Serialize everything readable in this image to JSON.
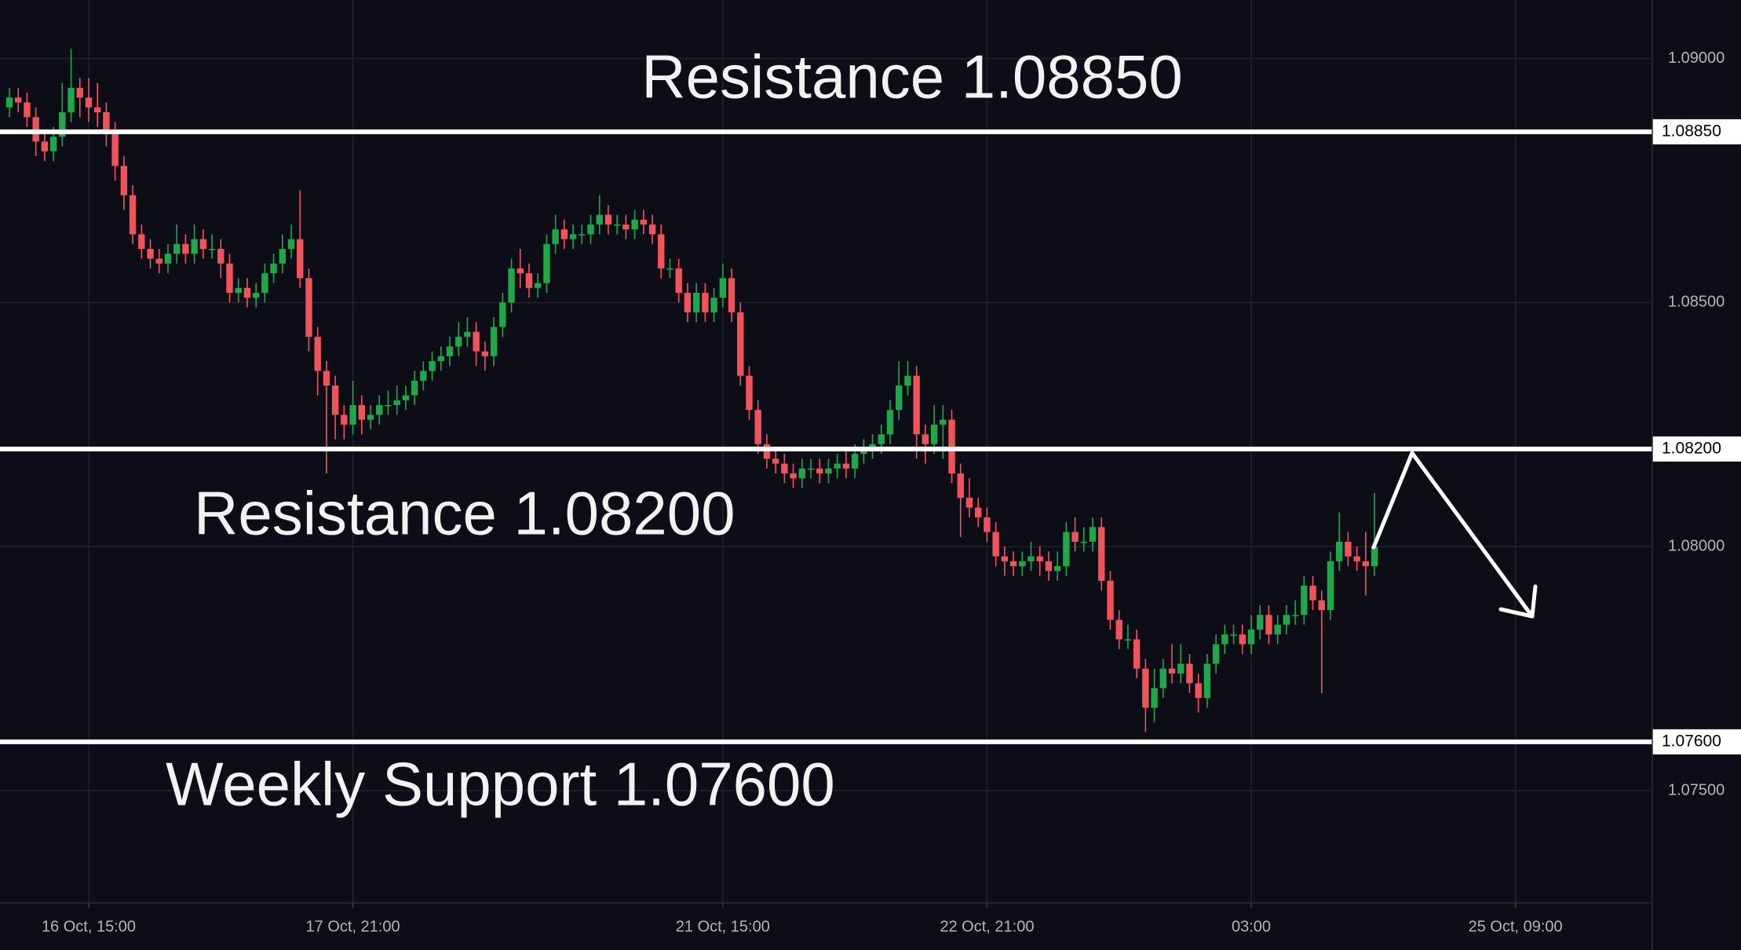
{
  "chart_data": {
    "type": "candlestick",
    "up_color": "#1ea84a",
    "down_color": "#f0545a",
    "background": "#0c0d17",
    "grid": true,
    "ylim": [
      1.0727,
      1.0912
    ],
    "yticks": [
      {
        "value": 1.09,
        "label": "1.09000"
      },
      {
        "value": 1.085,
        "label": "1.08500"
      },
      {
        "value": 1.08,
        "label": "1.08000"
      },
      {
        "value": 1.075,
        "label": "1.07500"
      }
    ],
    "levels": [
      {
        "value": 1.0885,
        "label": "1.08850",
        "annotation": "Resistance 1.08850"
      },
      {
        "value": 1.082,
        "label": "1.08200",
        "annotation": "Resistance 1.08200"
      },
      {
        "value": 1.076,
        "label": "1.07600",
        "annotation": "Weekly Support 1.07600"
      }
    ],
    "categories": [
      null,
      null,
      null,
      null,
      null,
      null,
      null,
      null,
      null,
      "16 Oct, 15:00",
      null,
      null,
      null,
      null,
      null,
      null,
      null,
      null,
      null,
      null,
      null,
      null,
      null,
      null,
      null,
      null,
      null,
      null,
      null,
      null,
      null,
      null,
      null,
      null,
      null,
      null,
      null,
      null,
      null,
      "17 Oct, 21:00",
      null,
      null,
      null,
      null,
      null,
      null,
      null,
      null,
      null,
      null,
      null,
      null,
      null,
      null,
      null,
      null,
      null,
      null,
      null,
      null,
      null,
      null,
      null,
      null,
      null,
      null,
      null,
      null,
      null,
      null,
      null,
      null,
      null,
      null,
      null,
      null,
      null,
      null,
      null,
      null,
      null,
      "21 Oct, 15:00",
      null,
      null,
      null,
      null,
      null,
      null,
      null,
      null,
      null,
      null,
      null,
      null,
      null,
      null,
      null,
      null,
      null,
      null,
      null,
      null,
      null,
      null,
      null,
      null,
      null,
      null,
      null,
      null,
      null,
      "22 Oct, 21:00",
      null,
      null,
      null,
      null,
      null,
      null,
      null,
      null,
      null,
      null,
      null,
      null,
      null,
      null,
      null,
      null,
      null,
      null,
      null,
      null,
      null,
      null,
      null,
      null,
      null,
      null,
      null,
      null,
      null,
      "03:00",
      null,
      null,
      null,
      null,
      null,
      null,
      null,
      null,
      null,
      null,
      null,
      null,
      null,
      null,
      null,
      null,
      null,
      null,
      null,
      null,
      null,
      null,
      null,
      null,
      null,
      null,
      null,
      null,
      null,
      "25 Oct, 09:00",
      null,
      null,
      null,
      null,
      null,
      null,
      null,
      null,
      null,
      null,
      null,
      null,
      null,
      null,
      null
    ],
    "open": [
      1.089,
      1.0892,
      1.0891,
      1.0888,
      1.0883,
      1.0881,
      1.0884,
      1.0889,
      1.0894,
      1.0892,
      1.089,
      1.0889,
      1.0885,
      1.0878,
      1.0872,
      1.0864,
      1.0861,
      1.0859,
      1.0858,
      1.086,
      1.0862,
      1.086,
      1.0863,
      1.0861,
      1.0861,
      1.0858,
      1.0852,
      1.0853,
      1.0851,
      1.0852,
      1.0856,
      1.0858,
      1.0861,
      1.0863,
      1.0855,
      1.0843,
      1.0836,
      1.0833,
      1.0827,
      1.0825,
      1.0829,
      1.0826,
      1.0827,
      1.0829,
      1.0829,
      1.083,
      1.0831,
      1.0834,
      1.0836,
      1.0838,
      1.0839,
      1.0841,
      1.0843,
      1.0844,
      1.084,
      1.0839,
      1.0845,
      1.085,
      1.0857,
      1.0856,
      1.0853,
      1.0854,
      1.0862,
      1.0865,
      1.0863,
      1.0864,
      1.0864,
      1.0866,
      1.0868,
      1.0866,
      1.0866,
      1.0865,
      1.0867,
      1.0866,
      1.0864,
      1.0857,
      1.0857,
      1.0852,
      1.0848,
      1.0852,
      1.0848,
      1.0851,
      1.0855,
      1.0848,
      1.0835,
      1.0828,
      1.0821,
      1.0818,
      1.0817,
      1.0815,
      1.0814,
      1.0816,
      1.0816,
      1.0815,
      1.0816,
      1.0817,
      1.0816,
      1.0819,
      1.082,
      1.0821,
      1.0823,
      1.0828,
      1.0833,
      1.0835,
      1.0823,
      1.0821,
      1.0825,
      1.0826,
      1.0815,
      1.081,
      1.0808,
      1.0806,
      1.0803,
      1.0798,
      1.0797,
      1.0796,
      1.0797,
      1.0798,
      1.0797,
      1.0795,
      1.0796,
      1.0803,
      1.0801,
      1.0801,
      1.0804,
      1.0793,
      1.0785,
      1.0781,
      1.0781,
      1.0775,
      1.0767,
      1.0771,
      1.0775,
      1.0774,
      1.0776,
      1.0772,
      1.0769,
      1.0776,
      1.078,
      1.0782,
      1.0782,
      1.078,
      1.0783,
      1.0786,
      1.0782,
      1.0784,
      1.0786,
      1.0786,
      1.0792,
      1.0789,
      1.0787,
      1.0797,
      1.0801,
      1.0798,
      1.0797,
      1.0796,
      null,
      null,
      null,
      null,
      null,
      null,
      null,
      null,
      null,
      null,
      null,
      null,
      null,
      null,
      null,
      null,
      null,
      null,
      null,
      null,
      null,
      null,
      null,
      null,
      null,
      null,
      null,
      null,
      null,
      null,
      null
    ],
    "high": [
      1.0894,
      1.0894,
      1.0893,
      1.089,
      1.0885,
      1.0886,
      1.0895,
      1.0902,
      1.0896,
      1.0896,
      1.0895,
      1.0891,
      1.0887,
      1.088,
      1.0874,
      1.0866,
      1.0863,
      1.0861,
      1.0862,
      1.0866,
      1.0864,
      1.0866,
      1.0865,
      1.0864,
      1.0863,
      1.086,
      1.0855,
      1.0855,
      1.0854,
      1.0858,
      1.086,
      1.0864,
      1.0866,
      1.0873,
      1.0857,
      1.0845,
      1.0838,
      1.0835,
      1.0829,
      1.0834,
      1.0831,
      1.0829,
      1.0831,
      1.0832,
      1.0833,
      1.0833,
      1.0836,
      1.0838,
      1.084,
      1.0841,
      1.0843,
      1.0846,
      1.0847,
      1.0846,
      1.0842,
      1.0847,
      1.0852,
      1.0859,
      1.0861,
      1.0858,
      1.0856,
      1.0864,
      1.0868,
      1.0867,
      1.0866,
      1.0866,
      1.0868,
      1.0872,
      1.087,
      1.0868,
      1.0868,
      1.0869,
      1.0869,
      1.0868,
      1.0866,
      1.0859,
      1.0859,
      1.0854,
      1.0854,
      1.0854,
      1.0853,
      1.0858,
      1.0857,
      1.085,
      1.0837,
      1.083,
      1.0823,
      1.082,
      1.0819,
      1.0817,
      1.0818,
      1.0818,
      1.0818,
      1.0818,
      1.0819,
      1.082,
      1.0821,
      1.0822,
      1.0823,
      1.0825,
      1.083,
      1.0838,
      1.0838,
      1.0837,
      1.0825,
      1.0829,
      1.0829,
      1.0828,
      1.0817,
      1.0814,
      1.081,
      1.0808,
      1.0805,
      1.08,
      1.0799,
      1.0799,
      1.0801,
      1.08,
      1.0799,
      1.0799,
      1.0805,
      1.0806,
      1.0804,
      1.0806,
      1.0806,
      1.0795,
      1.0787,
      1.0784,
      1.0783,
      1.0777,
      1.0775,
      1.0777,
      1.078,
      1.078,
      1.0778,
      1.0774,
      1.0778,
      1.0782,
      1.0784,
      1.0784,
      1.0784,
      1.0786,
      1.0788,
      1.0788,
      1.0786,
      1.0788,
      1.0789,
      1.0794,
      1.0794,
      1.0791,
      1.0799,
      1.0807,
      1.0803,
      1.08,
      1.0803,
      1.0811,
      null,
      null,
      null,
      null,
      null,
      null,
      null,
      null,
      null,
      null,
      null,
      null,
      null,
      null,
      null,
      null,
      null,
      null,
      null,
      null,
      null,
      null,
      null,
      null,
      null,
      null,
      null,
      null,
      null,
      null,
      null
    ],
    "low": [
      1.0888,
      1.0889,
      1.0886,
      1.088,
      1.0879,
      1.0879,
      1.0882,
      1.0887,
      1.0888,
      1.0887,
      1.0886,
      1.0882,
      1.0875,
      1.0869,
      1.0862,
      1.0859,
      1.0857,
      1.0856,
      1.0856,
      1.0858,
      1.0858,
      1.0858,
      1.0859,
      1.0859,
      1.0855,
      1.085,
      1.085,
      1.0849,
      1.0849,
      1.085,
      1.0854,
      1.0856,
      1.0859,
      1.0853,
      1.084,
      1.0831,
      1.0815,
      1.0822,
      1.0822,
      1.0823,
      1.0823,
      1.0824,
      1.0825,
      1.0827,
      1.0827,
      1.0828,
      1.0829,
      1.0832,
      1.0834,
      1.0836,
      1.0837,
      1.0839,
      1.0841,
      1.0837,
      1.0836,
      1.0837,
      1.0843,
      1.0848,
      1.0853,
      1.0851,
      1.0851,
      1.0852,
      1.086,
      1.0861,
      1.0861,
      1.0862,
      1.0862,
      1.0864,
      1.0864,
      1.0864,
      1.0863,
      1.0863,
      1.0864,
      1.0862,
      1.0855,
      1.0855,
      1.085,
      1.0846,
      1.0846,
      1.0846,
      1.0846,
      1.0849,
      1.0846,
      1.0833,
      1.0826,
      1.0819,
      1.0816,
      1.0815,
      1.0813,
      1.0812,
      1.0812,
      1.0814,
      1.0813,
      1.0813,
      1.0814,
      1.0814,
      1.0814,
      1.0817,
      1.0818,
      1.0819,
      1.0821,
      1.0826,
      1.0831,
      1.0818,
      1.0817,
      1.0819,
      1.0818,
      1.0813,
      1.0802,
      1.0806,
      1.0804,
      1.0801,
      1.0796,
      1.0794,
      1.0794,
      1.0794,
      1.0795,
      1.0794,
      1.0793,
      1.0793,
      1.0794,
      1.0799,
      1.0799,
      1.0799,
      1.0791,
      1.0783,
      1.0779,
      1.0779,
      1.0773,
      1.0762,
      1.0764,
      1.0769,
      1.0772,
      1.0772,
      1.077,
      1.0766,
      1.0767,
      1.0774,
      1.0778,
      1.078,
      1.0778,
      1.0778,
      1.0781,
      1.078,
      1.078,
      1.0782,
      1.0784,
      1.0784,
      1.0787,
      1.077,
      1.0785,
      1.0795,
      1.0796,
      1.0795,
      1.079,
      1.0794,
      null,
      null,
      null,
      null,
      null,
      null,
      null,
      null,
      null,
      null,
      null,
      null,
      null,
      null,
      null,
      null,
      null,
      null,
      null,
      null,
      null,
      null,
      null,
      null,
      null,
      null,
      null,
      null,
      null,
      null,
      null
    ],
    "close": [
      1.0892,
      1.0891,
      1.0888,
      1.0883,
      1.0881,
      1.0884,
      1.0889,
      1.0894,
      1.0892,
      1.089,
      1.0889,
      1.0885,
      1.0878,
      1.0872,
      1.0864,
      1.0861,
      1.0859,
      1.0858,
      1.086,
      1.0862,
      1.086,
      1.0863,
      1.0861,
      1.0861,
      1.0858,
      1.0852,
      1.0853,
      1.0851,
      1.0852,
      1.0856,
      1.0858,
      1.0861,
      1.0863,
      1.0855,
      1.0843,
      1.0836,
      1.0833,
      1.0827,
      1.0825,
      1.0829,
      1.0826,
      1.0827,
      1.0829,
      1.0829,
      1.083,
      1.0831,
      1.0834,
      1.0836,
      1.0838,
      1.0839,
      1.0841,
      1.0843,
      1.0844,
      1.084,
      1.0839,
      1.0845,
      1.085,
      1.0857,
      1.0856,
      1.0853,
      1.0854,
      1.0862,
      1.0865,
      1.0863,
      1.0864,
      1.0864,
      1.0866,
      1.0868,
      1.0866,
      1.0866,
      1.0865,
      1.0867,
      1.0866,
      1.0864,
      1.0857,
      1.0857,
      1.0852,
      1.0848,
      1.0852,
      1.0848,
      1.0851,
      1.0855,
      1.0848,
      1.0835,
      1.0828,
      1.0821,
      1.0818,
      1.0817,
      1.0815,
      1.0814,
      1.0816,
      1.0816,
      1.0815,
      1.0816,
      1.0817,
      1.0816,
      1.0819,
      1.082,
      1.0821,
      1.0823,
      1.0828,
      1.0833,
      1.0835,
      1.0823,
      1.0821,
      1.0825,
      1.0826,
      1.0815,
      1.081,
      1.0808,
      1.0806,
      1.0803,
      1.0798,
      1.0797,
      1.0796,
      1.0797,
      1.0798,
      1.0797,
      1.0795,
      1.0796,
      1.0803,
      1.0801,
      1.0801,
      1.0804,
      1.0793,
      1.0785,
      1.0781,
      1.0781,
      1.0775,
      1.0767,
      1.0771,
      1.0775,
      1.0774,
      1.0776,
      1.0772,
      1.0769,
      1.0776,
      1.078,
      1.0782,
      1.0782,
      1.078,
      1.0783,
      1.0786,
      1.0782,
      1.0784,
      1.0786,
      1.0786,
      1.0792,
      1.0789,
      1.0787,
      1.0797,
      1.0801,
      1.0798,
      1.0797,
      1.0796,
      1.08,
      null,
      null,
      null,
      null,
      null,
      null,
      null,
      null,
      null,
      null,
      null,
      null,
      null,
      null,
      null,
      null,
      null,
      null,
      null,
      null,
      null,
      null,
      null,
      null,
      null,
      null,
      null,
      null,
      null,
      null,
      null
    ]
  }
}
